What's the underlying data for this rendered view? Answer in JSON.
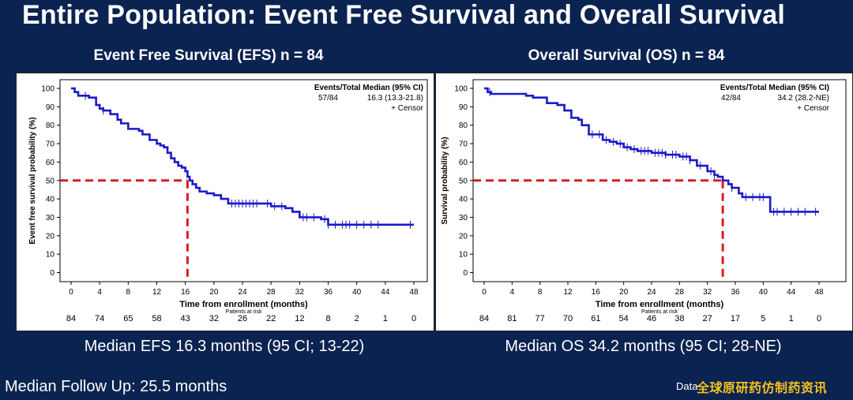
{
  "page": {
    "title": "Entire Population: Event Free Survival and Overall Survival",
    "followup": "Median Follow Up: 25.5 months",
    "data_note": "Data",
    "watermark": "全球原研药仿制药资讯",
    "colors": {
      "background": "#0b2350",
      "curve": "#1a1ac8",
      "median_line": "#d42020",
      "watermark": "#f6c21c"
    }
  },
  "efs": {
    "panel_title": "Event Free Survival (EFS) n = 84",
    "caption": "Median EFS 16.3 months (95 CI; 13-22)"
  },
  "os": {
    "panel_title": "Overall Survival (OS) n = 84",
    "caption": "Median OS 34.2 months (95 CI; 28-NE)"
  },
  "chart_data": [
    {
      "type": "line",
      "step": true,
      "ylabel": "Event free survival probability (%)",
      "xlabel": "Time from enrollment (months)",
      "xlim": [
        0,
        48
      ],
      "ylim": [
        0,
        100
      ],
      "xticks": [
        0,
        4,
        8,
        12,
        16,
        20,
        24,
        28,
        32,
        36,
        40,
        44,
        48
      ],
      "yticks": [
        0,
        10,
        20,
        30,
        40,
        50,
        60,
        70,
        80,
        90,
        100
      ],
      "legend": {
        "header_left": "Events/Total",
        "header_right": "Median (95% CI)",
        "value_left": "57/84",
        "value_right": "16.3 (13.3-21.8)",
        "censor_label": "+ Censor",
        "placement": "top-right"
      },
      "risk_label": "Patients at risk",
      "at_risk": [
        "84",
        "74",
        "65",
        "58",
        "43",
        "32",
        "26",
        "22",
        "12",
        "8",
        "2",
        "1",
        "0"
      ],
      "median": {
        "x": 16.3,
        "y": 50
      },
      "series": [
        {
          "x": [
            0,
            0.5,
            1,
            1.5,
            2.5,
            3.5,
            4,
            4.5,
            5.5,
            6.5,
            7,
            8,
            9.5,
            10,
            11,
            12,
            12.5,
            13,
            13.5,
            14,
            14.5,
            15,
            15.5,
            16,
            16.3,
            16.6,
            17,
            17.5,
            18,
            19,
            20,
            21,
            22,
            28,
            30,
            31,
            32,
            35,
            36,
            48
          ],
          "y": [
            100,
            98,
            96,
            96,
            95,
            91,
            89,
            88,
            86,
            83,
            81,
            78,
            77,
            75,
            72,
            70,
            69,
            68,
            65,
            62,
            60,
            58,
            57,
            55,
            52,
            50,
            48,
            46,
            44,
            43,
            42,
            40,
            37.5,
            36,
            35,
            33,
            30,
            29,
            26,
            26
          ]
        }
      ],
      "censor_x": [
        2,
        4.5,
        22.5,
        23,
        23.5,
        24,
        24.5,
        25,
        25.5,
        26,
        27.5,
        28.5,
        29.5,
        32.5,
        33,
        34,
        35.5,
        36,
        37,
        38,
        38.5,
        39,
        40,
        41,
        42,
        43,
        47.5
      ]
    },
    {
      "type": "line",
      "step": true,
      "ylabel": "Survival probability (%)",
      "xlabel": "Time from enrollment (months)",
      "xlim": [
        0,
        48
      ],
      "ylim": [
        0,
        100
      ],
      "xticks": [
        0,
        4,
        8,
        12,
        16,
        20,
        24,
        28,
        32,
        36,
        40,
        44,
        48
      ],
      "yticks": [
        0,
        10,
        20,
        30,
        40,
        50,
        60,
        70,
        80,
        90,
        100
      ],
      "legend": {
        "header_left": "Events/Total",
        "header_right": "Median (95% CI)",
        "value_left": "42/84",
        "value_right": "34.2 (28.2-NE)",
        "censor_label": "+ Censor",
        "placement": "top-right"
      },
      "risk_label": "Patients at risk",
      "at_risk": [
        "84",
        "81",
        "77",
        "70",
        "61",
        "54",
        "46",
        "38",
        "27",
        "17",
        "5",
        "1",
        "0"
      ],
      "median": {
        "x": 34.2,
        "y": 50
      },
      "series": [
        {
          "x": [
            0,
            0.5,
            1,
            6,
            7,
            9,
            10.5,
            11.5,
            12.5,
            13.5,
            14,
            15,
            17,
            18,
            19,
            20,
            21,
            22,
            24,
            26,
            28,
            29.5,
            30.5,
            32,
            33,
            33.5,
            34.2,
            35,
            35.5,
            36.5,
            37,
            41,
            48
          ],
          "y": [
            100,
            98,
            97,
            96,
            95,
            92,
            91,
            88,
            84,
            83,
            80,
            75,
            72,
            71,
            70,
            68,
            67,
            66,
            65,
            64,
            63,
            61,
            58,
            55,
            53,
            52,
            50,
            48,
            46,
            43,
            41,
            33,
            33
          ]
        }
      ],
      "censor_x": [
        0.8,
        15.5,
        16.5,
        17.5,
        18.5,
        19.5,
        20.5,
        21.5,
        22.5,
        23,
        23.5,
        24.5,
        25,
        25.5,
        26,
        27,
        27.5,
        28.5,
        29,
        29.5,
        31,
        32.5,
        33,
        35.5,
        37.5,
        38.5,
        39.5,
        40,
        41.5,
        42,
        43,
        44,
        45,
        46,
        47.5
      ]
    }
  ]
}
